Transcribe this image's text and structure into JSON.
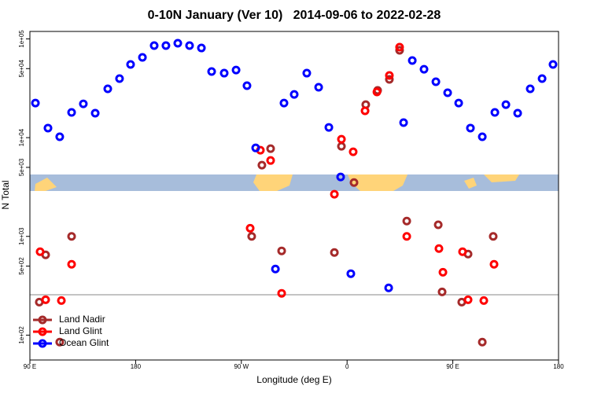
{
  "chart_data": {
    "type": "scatter",
    "title": "0-10N January (Ver 10)   2014-09-06 to 2022-02-28",
    "x_label": "Longitude (deg E)",
    "y_label": "N Total",
    "log_y": true,
    "legend": "bottom-left",
    "xlim": [
      90,
      540
    ],
    "ylim": [
      56,
      119000
    ],
    "xticks": [
      {
        "value": 90,
        "label": "90 E"
      },
      180,
      {
        "value": 270,
        "label": "90 W"
      },
      {
        "value": 360,
        "label": "0"
      },
      {
        "value": 450,
        "label": "90 E"
      },
      {
        "value": 540,
        "label": "180"
      }
    ],
    "yticks": [
      {
        "value": 100,
        "label": "1e+02"
      },
      {
        "value": 500,
        "label": "5e+02"
      },
      {
        "value": 1000,
        "label": "1e+03"
      },
      {
        "value": 5000,
        "label": "5e+03"
      },
      {
        "value": 10000,
        "label": "1e+04"
      },
      {
        "value": 50000,
        "label": "5e+04"
      },
      {
        "value": 100000,
        "label": "1e+05"
      }
    ],
    "series": [
      {
        "name": "Land Nadir",
        "color": "#a52a2a",
        "x": [
          98,
          103.4,
          115.4,
          125.5,
          278.8,
          287.5,
          294.9,
          304.3,
          349.2,
          355.2,
          365.9,
          375.9,
          386,
          396,
          404.7,
          410.8,
          437.6,
          440.9,
          457.6,
          463,
          475.1,
          484.4
        ],
        "values": [
          216,
          650,
          85,
          1000,
          1000,
          5260,
          7730,
          713,
          687,
          8170,
          3510,
          21600,
          30100,
          38900,
          76600,
          1430,
          1310,
          274,
          216,
          662,
          85,
          1000
        ]
      },
      {
        "name": "Land Glint",
        "color": "#ff0000",
        "x": [
          98.7,
          103.4,
          116.8,
          125.5,
          277.5,
          286.2,
          294.9,
          304.3,
          349.2,
          355.2,
          365.2,
          375.3,
          385.4,
          396,
          404.7,
          410.8,
          438.2,
          441.6,
          458.3,
          463,
          476.4,
          485.1
        ],
        "values": [
          699,
          228,
          224,
          522,
          1210,
          7460,
          5870,
          265,
          2670,
          9630,
          7190,
          18700,
          29000,
          42600,
          82500,
          1000,
          752,
          433,
          699,
          228,
          224,
          522
        ]
      },
      {
        "name": "Ocean Glint",
        "color": "#0000ff",
        "x": [
          94.7,
          105.4,
          115.4,
          125.5,
          135.5,
          145.6,
          156.3,
          166.3,
          175.7,
          185.8,
          195.8,
          205.8,
          215.9,
          225.9,
          236,
          244.7,
          255.4,
          265.5,
          274.8,
          282.2,
          299,
          306.3,
          315,
          325.7,
          335.8,
          344.5,
          354.5,
          363.2,
          395.4,
          408.1,
          415.5,
          425.5,
          435.6,
          445.6,
          455,
          465,
          475.1,
          485.8,
          495.2,
          505.2,
          515.9,
          526,
          535.3
        ],
        "values": [
          22400,
          12500,
          10200,
          18000,
          22000,
          17700,
          31200,
          39600,
          55100,
          65000,
          85500,
          85500,
          90400,
          85500,
          80900,
          46700,
          45000,
          48400,
          33600,
          7870,
          467,
          22400,
          27400,
          45000,
          32400,
          12700,
          4000,
          419,
          301,
          14200,
          60400,
          49300,
          36800,
          28500,
          22400,
          12500,
          10200,
          18000,
          21600,
          17700,
          31200,
          39600,
          55100
        ]
      }
    ]
  }
}
